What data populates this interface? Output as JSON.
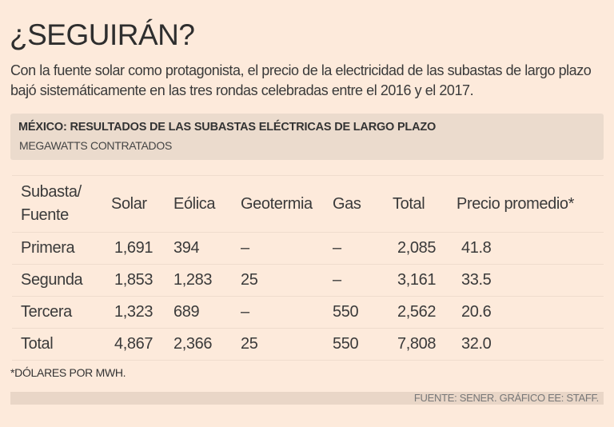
{
  "title": "¿SEGUIRÁN?",
  "subtitle": "Con la fuente solar como protagonista, el precio de la electricidad de las subastas de largo plazo bajó sistemáticamente en las tres rondas celebradas entre el 2016 y el 2017.",
  "chart_data": {
    "type": "table",
    "title": "MÉXICO: RESULTADOS DE LAS SUBASTAS ELÉCTRICAS DE LARGO PLAZO",
    "subtitle": "MEGAWATTS CONTRATADOS",
    "columns": [
      "Subasta/ Fuente",
      "Solar",
      "Eólica",
      "Geotermia",
      "Gas",
      "Total",
      "Precio promedio*"
    ],
    "rows": [
      [
        "Primera",
        "1,691",
        "394",
        "–",
        "–",
        "2,085",
        "41.8"
      ],
      [
        "Segunda",
        "1,853",
        "1,283",
        "25",
        "–",
        "3,161",
        "33.5"
      ],
      [
        "Tercera",
        "1,323",
        "689",
        "–",
        "550",
        "2,562",
        "20.6"
      ],
      [
        "Total",
        "4,867",
        "2,366",
        "25",
        "550",
        "7,808",
        "32.0"
      ]
    ],
    "note": "*DÓLARES POR MWH.",
    "source": "FUENTE: SENER. GRÁFICO EE: STAFF."
  },
  "colors": {
    "background": "#fdeadb",
    "header_box": "#ebdbcd",
    "footer_bar": "#e9d6c7"
  }
}
